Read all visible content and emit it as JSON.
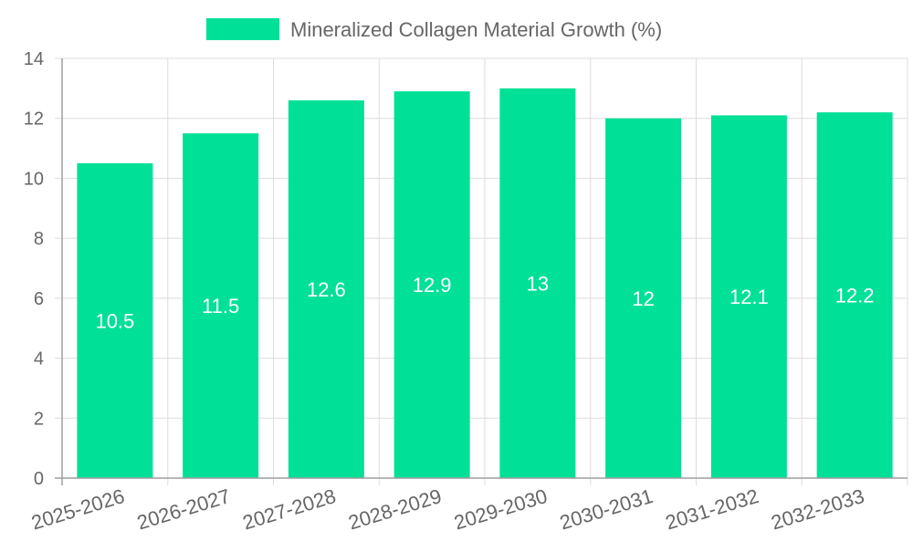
{
  "chart_data": {
    "type": "bar",
    "categories": [
      "2025-2026",
      "2026-2027",
      "2027-2028",
      "2028-2029",
      "2029-2030",
      "2030-2031",
      "2031-2032",
      "2032-2033"
    ],
    "series": [
      {
        "name": "Mineralized Collagen Material Growth (%)",
        "values": [
          10.5,
          11.5,
          12.6,
          12.9,
          13,
          12,
          12.1,
          12.2
        ],
        "color": "#00e096"
      }
    ],
    "ylim": [
      0,
      14
    ],
    "yticks": [
      0,
      2,
      4,
      6,
      8,
      10,
      12,
      14
    ],
    "grid": true,
    "legend": "top-center",
    "data_labels": true,
    "colors": {
      "grid": "#dddddd",
      "axis": "#9e9e9e",
      "tick_text": "#666666",
      "data_label": "#ffffff"
    }
  }
}
